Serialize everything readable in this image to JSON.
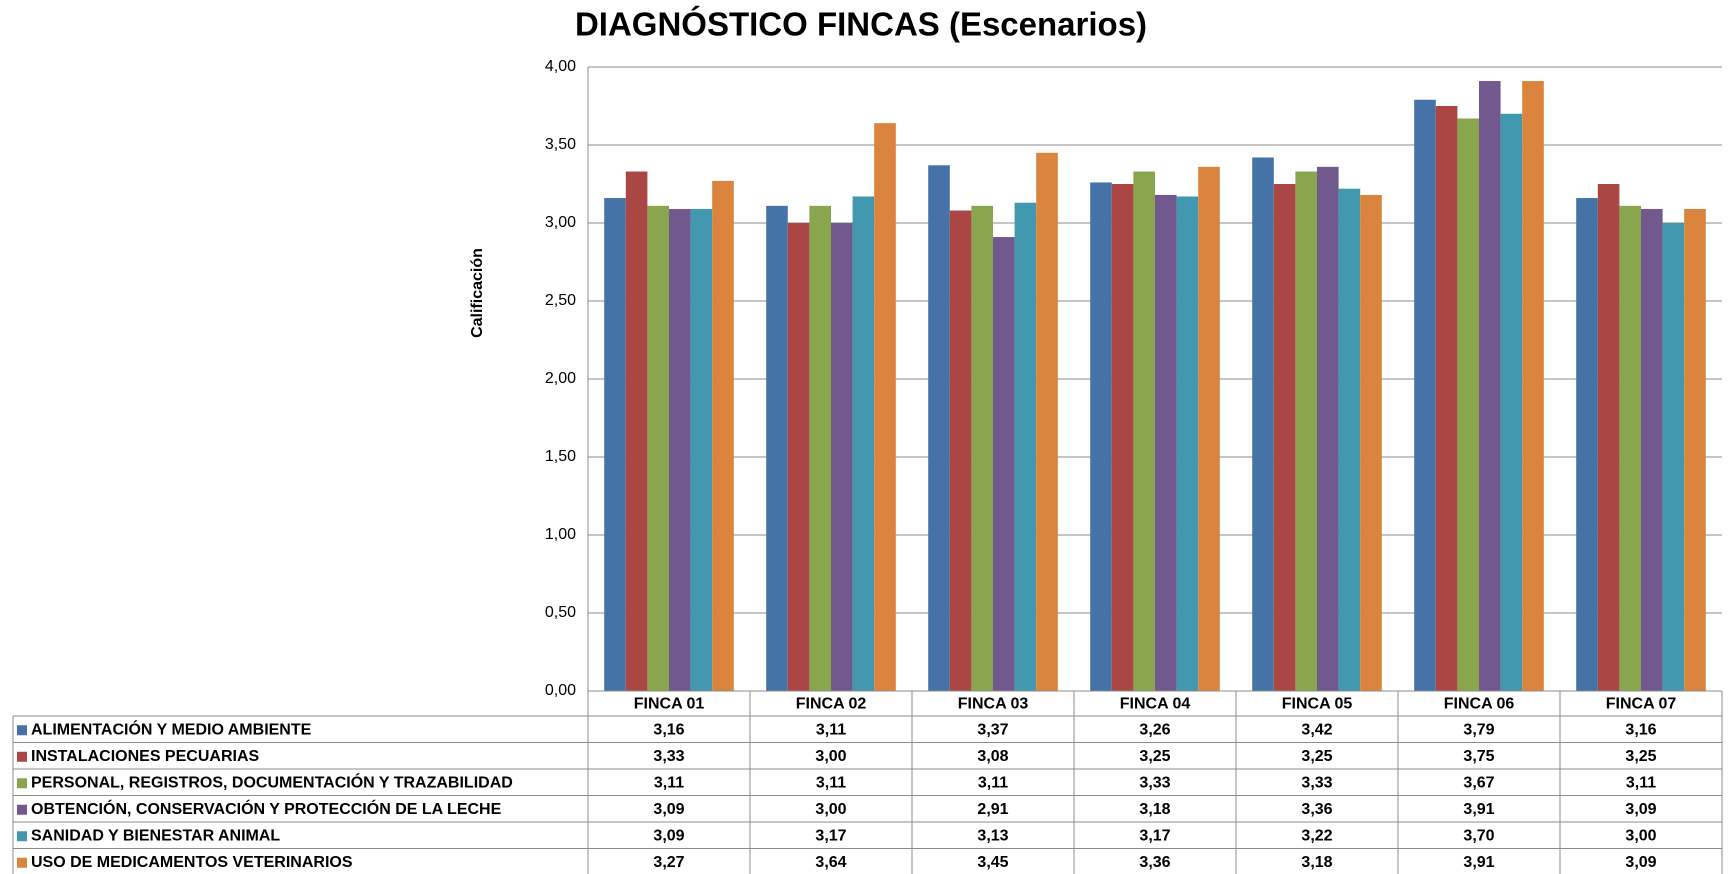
{
  "chart_data": {
    "type": "bar",
    "title": "DIAGNÓSTICO FINCAS (Escenarios)",
    "y_label": "Calificación",
    "categories": [
      "FINCA 01",
      "FINCA 02",
      "FINCA 03",
      "FINCA 04",
      "FINCA 05",
      "FINCA 06",
      "FINCA 07"
    ],
    "series": [
      {
        "name": "ALIMENTACIÓN Y MEDIO AMBIENTE",
        "color": "#4572a7",
        "values": [
          3.16,
          3.11,
          3.37,
          3.26,
          3.42,
          3.79,
          3.16
        ],
        "value_labels": [
          "3,16",
          "3,11",
          "3,37",
          "3,26",
          "3,42",
          "3,79",
          "3,16"
        ]
      },
      {
        "name": "INSTALACIONES PECUARIAS",
        "color": "#aa4643",
        "values": [
          3.33,
          3.0,
          3.08,
          3.25,
          3.25,
          3.75,
          3.25
        ],
        "value_labels": [
          "3,33",
          "3,00",
          "3,08",
          "3,25",
          "3,25",
          "3,75",
          "3,25"
        ]
      },
      {
        "name": "PERSONAL, REGISTROS, DOCUMENTACIÓN Y TRAZABILIDAD",
        "color": "#89a54e",
        "values": [
          3.11,
          3.11,
          3.11,
          3.33,
          3.33,
          3.67,
          3.11
        ],
        "value_labels": [
          "3,11",
          "3,11",
          "3,11",
          "3,33",
          "3,33",
          "3,67",
          "3,11"
        ]
      },
      {
        "name": "OBTENCIÓN, CONSERVACIÓN Y PROTECCIÓN DE LA LECHE",
        "color": "#71588f",
        "values": [
          3.09,
          3.0,
          2.91,
          3.18,
          3.36,
          3.91,
          3.09
        ],
        "value_labels": [
          "3,09",
          "3,00",
          "2,91",
          "3,18",
          "3,36",
          "3,91",
          "3,09"
        ]
      },
      {
        "name": "SANIDAD Y BIENESTAR ANIMAL",
        "color": "#4198af",
        "values": [
          3.09,
          3.17,
          3.13,
          3.17,
          3.22,
          3.7,
          3.0
        ],
        "value_labels": [
          "3,09",
          "3,17",
          "3,13",
          "3,17",
          "3,22",
          "3,70",
          "3,00"
        ]
      },
      {
        "name": "USO DE MEDICAMENTOS VETERINARIOS",
        "color": "#db843d",
        "values": [
          3.27,
          3.64,
          3.45,
          3.36,
          3.18,
          3.91,
          3.09
        ],
        "value_labels": [
          "3,27",
          "3,64",
          "3,45",
          "3,36",
          "3,18",
          "3,91",
          "3,09"
        ]
      }
    ],
    "ylim": [
      0,
      4
    ],
    "yticks": [
      {
        "value": 0,
        "label": "0,00"
      },
      {
        "value": 0.5,
        "label": "0,50"
      },
      {
        "value": 1,
        "label": "1,00"
      },
      {
        "value": 1.5,
        "label": "1,50"
      },
      {
        "value": 2,
        "label": "2,00"
      },
      {
        "value": 2.5,
        "label": "2,50"
      },
      {
        "value": 3,
        "label": "3,00"
      },
      {
        "value": 3.5,
        "label": "3,50"
      },
      {
        "value": 4,
        "label": "4,00"
      }
    ],
    "grid": true
  }
}
